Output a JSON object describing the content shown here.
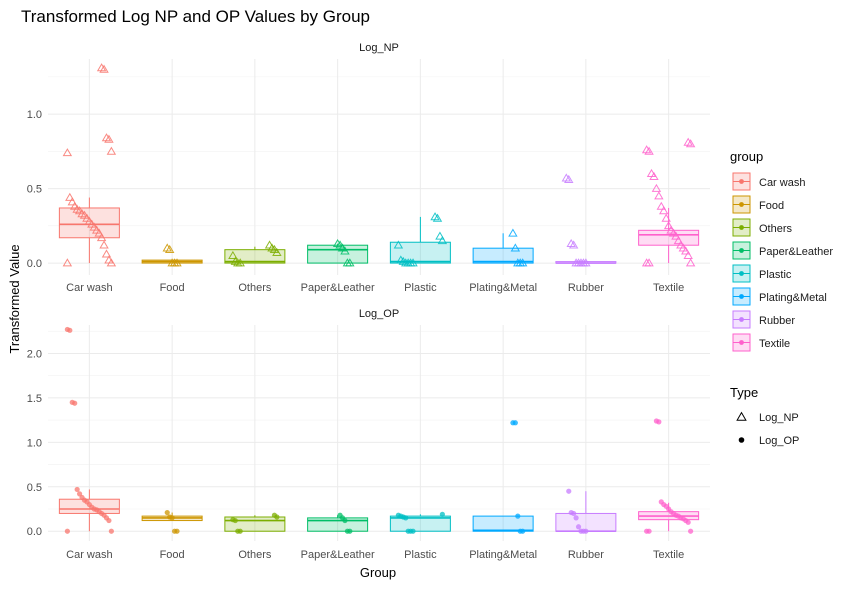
{
  "chart_data": {
    "type": "boxplot",
    "title": "Transformed Log NP and OP Values by Group",
    "xlabel": "Group",
    "ylabel": "Transformed Value",
    "categories": [
      "Car wash",
      "Food",
      "Others",
      "Paper&Leather",
      "Plastic",
      "Plating&Metal",
      "Rubber",
      "Textile"
    ],
    "colors": [
      "#F8766D",
      "#CD9600",
      "#7CAE00",
      "#00BE67",
      "#00BFC4",
      "#00A9FF",
      "#C77CFF",
      "#FF61CC"
    ],
    "grid": true,
    "legend_placement": "right",
    "legend": {
      "group_title": "group",
      "groups": [
        "Car wash",
        "Food",
        "Others",
        "Paper&Leather",
        "Plastic",
        "Plating&Metal",
        "Rubber",
        "Textile"
      ],
      "type_title": "Type",
      "types": [
        "Log_NP",
        "Log_OP"
      ]
    },
    "panels": [
      {
        "name": "Log_NP",
        "ylim": [
          -0.08,
          1.37
        ],
        "yticks": [
          0.0,
          0.5,
          1.0
        ],
        "ytick_labels": [
          "0.0",
          "0.5",
          "1.0"
        ],
        "boxes": [
          {
            "q1": 0.17,
            "median": 0.26,
            "q3": 0.37,
            "whisker_low": 0.0,
            "whisker_high": 0.44
          },
          {
            "q1": 0.0,
            "median": 0.01,
            "q3": 0.02,
            "whisker_low": 0.0,
            "whisker_high": 0.02
          },
          {
            "q1": 0.0,
            "median": 0.01,
            "q3": 0.09,
            "whisker_low": 0.0,
            "whisker_high": 0.11
          },
          {
            "q1": 0.0,
            "median": 0.09,
            "q3": 0.12,
            "whisker_low": 0.0,
            "whisker_high": 0.13
          },
          {
            "q1": 0.0,
            "median": 0.01,
            "q3": 0.14,
            "whisker_low": 0.0,
            "whisker_high": 0.31
          },
          {
            "q1": 0.0,
            "median": 0.01,
            "q3": 0.1,
            "whisker_low": 0.0,
            "whisker_high": 0.2
          },
          {
            "q1": 0.0,
            "median": 0.0,
            "q3": 0.01,
            "whisker_low": 0.0,
            "whisker_high": 0.01
          },
          {
            "q1": 0.12,
            "median": 0.19,
            "q3": 0.22,
            "whisker_low": 0.0,
            "whisker_high": 0.37
          }
        ],
        "points": [
          [
            0.0,
            0.0,
            0.02,
            0.06,
            0.12,
            0.17,
            0.2,
            0.22,
            0.24,
            0.26,
            0.28,
            0.3,
            0.32,
            0.33,
            0.35,
            0.36,
            0.38,
            0.41,
            0.44,
            0.74,
            0.75,
            0.83,
            0.84,
            1.3,
            1.31
          ],
          [
            0.0,
            0.0,
            0.0,
            0.09,
            0.1
          ],
          [
            0.0,
            0.0,
            0.01,
            0.05,
            0.07,
            0.09,
            0.1,
            0.12
          ],
          [
            0.0,
            0.0,
            0.08,
            0.1,
            0.12,
            0.13
          ],
          [
            0.0,
            0.0,
            0.0,
            0.0,
            0.01,
            0.02,
            0.12,
            0.15,
            0.18,
            0.3,
            0.31
          ],
          [
            0.0,
            0.0,
            0.0,
            0.1,
            0.2
          ],
          [
            0.0,
            0.0,
            0.0,
            0.0,
            0.0,
            0.12,
            0.13,
            0.56,
            0.57
          ],
          [
            0.0,
            0.0,
            0.0,
            0.05,
            0.08,
            0.1,
            0.12,
            0.15,
            0.18,
            0.2,
            0.22,
            0.25,
            0.3,
            0.35,
            0.38,
            0.45,
            0.5,
            0.58,
            0.6,
            0.75,
            0.76,
            0.8,
            0.81
          ]
        ]
      },
      {
        "name": "Log_OP",
        "ylim": [
          -0.11,
          2.32
        ],
        "yticks": [
          0.0,
          0.5,
          1.0,
          1.5,
          2.0
        ],
        "ytick_labels": [
          "0.0",
          "0.5",
          "1.0",
          "1.5",
          "2.0"
        ],
        "boxes": [
          {
            "q1": 0.2,
            "median": 0.25,
            "q3": 0.36,
            "whisker_low": 0.0,
            "whisker_high": 0.47
          },
          {
            "q1": 0.12,
            "median": 0.15,
            "q3": 0.17,
            "whisker_low": 0.12,
            "whisker_high": 0.21
          },
          {
            "q1": 0.0,
            "median": 0.12,
            "q3": 0.16,
            "whisker_low": 0.0,
            "whisker_high": 0.18
          },
          {
            "q1": 0.0,
            "median": 0.12,
            "q3": 0.15,
            "whisker_low": 0.0,
            "whisker_high": 0.18
          },
          {
            "q1": 0.0,
            "median": 0.15,
            "q3": 0.17,
            "whisker_low": 0.0,
            "whisker_high": 0.19
          },
          {
            "q1": 0.0,
            "median": 0.01,
            "q3": 0.17,
            "whisker_low": 0.0,
            "whisker_high": 0.17
          },
          {
            "q1": 0.0,
            "median": 0.0,
            "q3": 0.2,
            "whisker_low": 0.0,
            "whisker_high": 0.45
          },
          {
            "q1": 0.13,
            "median": 0.17,
            "q3": 0.22,
            "whisker_low": 0.0,
            "whisker_high": 0.32
          }
        ],
        "points": [
          [
            0.0,
            0.0,
            0.12,
            0.15,
            0.18,
            0.2,
            0.22,
            0.24,
            0.25,
            0.27,
            0.3,
            0.33,
            0.35,
            0.38,
            0.42,
            0.47,
            1.44,
            1.45,
            2.26,
            2.27
          ],
          [
            0.0,
            0.0,
            0.15,
            0.16,
            0.21
          ],
          [
            0.0,
            0.0,
            0.12,
            0.13,
            0.16,
            0.18
          ],
          [
            0.0,
            0.0,
            0.12,
            0.15,
            0.18
          ],
          [
            0.0,
            0.0,
            0.0,
            0.15,
            0.16,
            0.17,
            0.18,
            0.19
          ],
          [
            0.0,
            0.0,
            0.17,
            1.22,
            1.22
          ],
          [
            0.0,
            0.0,
            0.0,
            0.05,
            0.15,
            0.2,
            0.21,
            0.45
          ],
          [
            0.0,
            0.0,
            0.0,
            0.1,
            0.12,
            0.14,
            0.15,
            0.17,
            0.18,
            0.2,
            0.22,
            0.25,
            0.28,
            0.3,
            0.33,
            1.23,
            1.24
          ]
        ]
      }
    ]
  }
}
